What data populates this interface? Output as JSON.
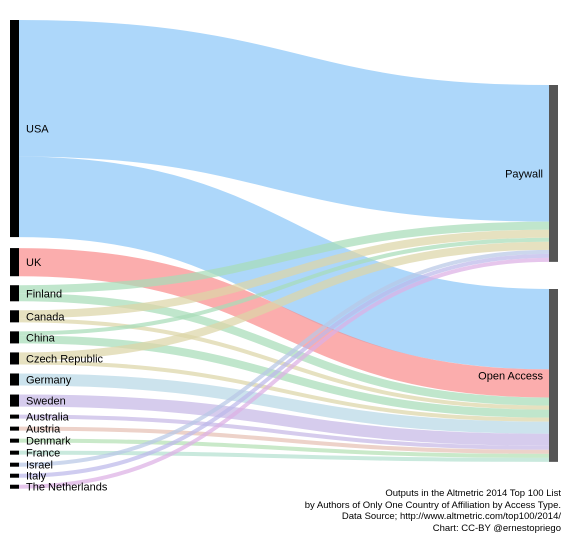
{
  "sources": [
    {
      "id": "usa",
      "label": "USA",
      "color": "#8ec8f8",
      "flows": {
        "paywall": 34,
        "open_access": 20
      }
    },
    {
      "id": "uk",
      "label": "UK",
      "color": "#f98d8d",
      "flows": {
        "open_access": 7
      }
    },
    {
      "id": "finland",
      "label": "Finland",
      "color": "#a8dcb8",
      "flows": {
        "paywall": 2,
        "open_access": 2
      }
    },
    {
      "id": "canada",
      "label": "Canada",
      "color": "#ddd6a8",
      "flows": {
        "paywall": 2,
        "open_access": 1
      }
    },
    {
      "id": "china",
      "label": "China",
      "color": "#a8dcb8",
      "flows": {
        "paywall": 1,
        "open_access": 2
      }
    },
    {
      "id": "czech",
      "label": "Czech Republic",
      "color": "#ddd6a8",
      "flows": {
        "paywall": 2,
        "open_access": 1
      }
    },
    {
      "id": "germany",
      "label": "Germany",
      "color": "#b8d8e6",
      "flows": {
        "open_access": 3
      }
    },
    {
      "id": "sweden",
      "label": "Sweden",
      "color": "#c6b8e6",
      "flows": {
        "open_access": 3
      }
    },
    {
      "id": "australia",
      "label": "Australia",
      "color": "#c6b8e6",
      "flows": {
        "open_access": 1
      }
    },
    {
      "id": "austria",
      "label": "Austria",
      "color": "#e6c0b4",
      "flows": {
        "open_access": 1
      }
    },
    {
      "id": "denmark",
      "label": "Denmark",
      "color": "#b4e0b4",
      "flows": {
        "open_access": 1
      }
    },
    {
      "id": "france",
      "label": "France",
      "color": "#b4e0d0",
      "flows": {
        "open_access": 1
      }
    },
    {
      "id": "israel",
      "label": "Israel",
      "color": "#b8c8e6",
      "flows": {
        "paywall": 1
      }
    },
    {
      "id": "italy",
      "label": "Italy",
      "color": "#bcb8ea",
      "flows": {
        "paywall": 1
      }
    },
    {
      "id": "netherlands",
      "label": "The Netherlands",
      "color": "#dcb0e4",
      "flows": {
        "paywall": 1
      }
    }
  ],
  "targets": [
    {
      "id": "paywall",
      "label": "Paywall"
    },
    {
      "id": "open_access",
      "label": "Open Access"
    }
  ],
  "node_color": "#000000",
  "target_node_color": "#555555",
  "caption": [
    "Outputs in the Altmetric 2014 Top 100 List",
    "by Authors of Only One Country of Affiliation by Access Type.",
    "Data Source; http://www.altmetric.com/top100/2014/",
    "Chart: CC-BY @ernestopriego"
  ]
}
